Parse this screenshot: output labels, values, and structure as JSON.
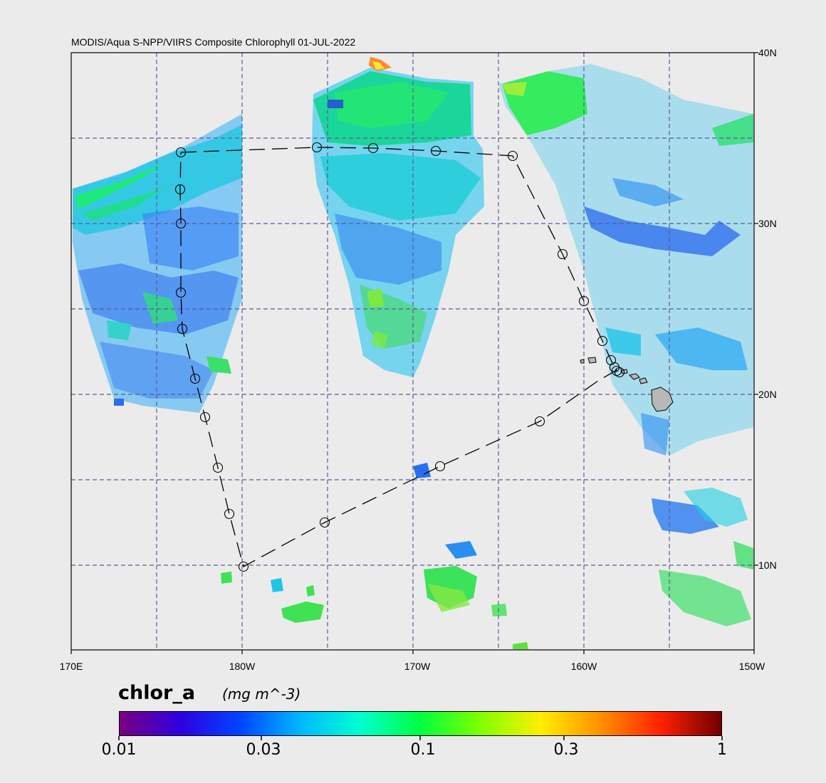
{
  "title": "MODIS/Aqua S-NPP/VIIRS Composite Chlorophyll 01-JUL-2022",
  "map": {
    "lon_range": [
      "170E",
      "150W"
    ],
    "lat_range": [
      "5N",
      "40N"
    ],
    "x_tick_labels": [
      "170E",
      "180W",
      "170W",
      "160W",
      "150W"
    ],
    "y_tick_labels": [
      "40N",
      "30N",
      "20N",
      "10N"
    ],
    "gridlines": true,
    "land_color": "#b8b8b8",
    "background_color": "#ebebeb",
    "track_style": "dashed",
    "track_stations": 24
  },
  "colorbar": {
    "variable": "chlor_a",
    "units": "(mg m^-3)",
    "scale": "log",
    "range": [
      0.01,
      1
    ],
    "tick_labels": [
      "0.01",
      "0.03",
      "0.1",
      "0.3",
      "1"
    ],
    "colors": [
      "#7a0080",
      "#2e00e0",
      "#0044ff",
      "#00b8ff",
      "#00ffd0",
      "#00ff40",
      "#80ff00",
      "#ffee00",
      "#ff9000",
      "#ff2000",
      "#700000"
    ]
  }
}
